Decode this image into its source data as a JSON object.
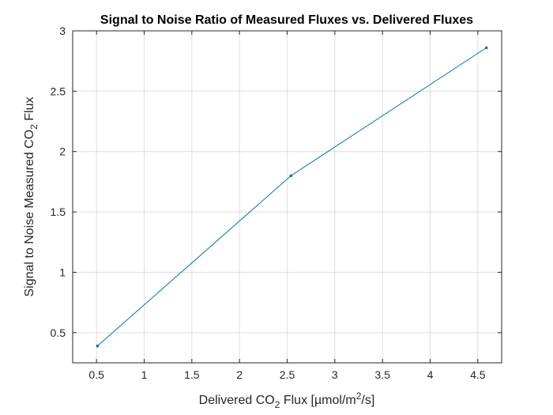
{
  "chart_data": {
    "type": "line",
    "title": "Signal to Noise Ratio of Measured Fluxes vs. Delivered Fluxes",
    "xlabel": {
      "before": "Delivered CO",
      "sub": "2",
      "middle": " Flux [µmol/m",
      "sup": "2",
      "after": "/s]"
    },
    "ylabel": {
      "before": "Signal to Noise Measured CO",
      "sub": "2",
      "after": " Flux"
    },
    "xlim": [
      0.25,
      4.75
    ],
    "ylim": [
      0.25,
      3
    ],
    "xticks": [
      0.5,
      1,
      1.5,
      2,
      2.5,
      3,
      3.5,
      4,
      4.5
    ],
    "xtick_labels": [
      "0.5",
      "1",
      "1.5",
      "2",
      "2.5",
      "3",
      "3.5",
      "4",
      "4.5"
    ],
    "yticks": [
      0.5,
      1,
      1.5,
      2,
      2.5,
      3
    ],
    "ytick_labels": [
      "0.5",
      "1",
      "1.5",
      "2",
      "2.5",
      "3"
    ],
    "grid": true,
    "series": [
      {
        "color": "#0072BD",
        "x": [
          0.51,
          2.54,
          4.59
        ],
        "y": [
          0.39,
          1.8,
          2.86
        ]
      }
    ]
  }
}
